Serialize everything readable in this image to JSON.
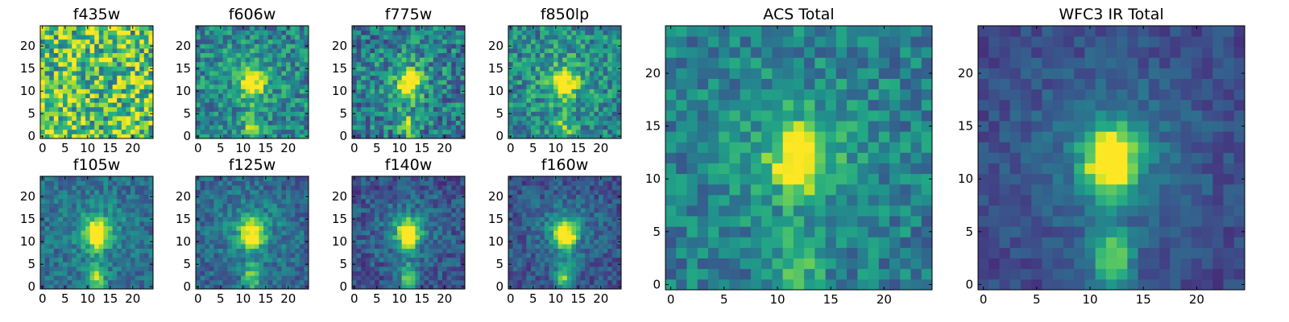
{
  "figure": {
    "description_type": "grid of heatmap image cutouts"
  },
  "chart_data": [
    {
      "type": "heatmap",
      "title": "f435w",
      "xlim": [
        -0.5,
        24.5
      ],
      "ylim": [
        -0.5,
        24.5
      ],
      "xticks": [
        "0",
        "5",
        "10",
        "15",
        "20"
      ],
      "yticks": [
        "0",
        "5",
        "10",
        "15",
        "20"
      ],
      "colormap": "viridis",
      "pattern": {
        "noise": 0.75,
        "background": 0.72,
        "source": 0.0,
        "tail": 0.0
      }
    },
    {
      "type": "heatmap",
      "title": "f606w",
      "xlim": [
        -0.5,
        24.5
      ],
      "ylim": [
        -0.5,
        24.5
      ],
      "xticks": [
        "0",
        "5",
        "10",
        "15",
        "20"
      ],
      "yticks": [
        "0",
        "5",
        "10",
        "15",
        "20"
      ],
      "colormap": "viridis",
      "pattern": {
        "noise": 0.45,
        "background": 0.45,
        "source": 0.55,
        "tail": 0.35
      }
    },
    {
      "type": "heatmap",
      "title": "f775w",
      "xlim": [
        -0.5,
        24.5
      ],
      "ylim": [
        -0.5,
        24.5
      ],
      "xticks": [
        "0",
        "5",
        "10",
        "15",
        "20"
      ],
      "yticks": [
        "0",
        "5",
        "10",
        "15",
        "20"
      ],
      "colormap": "viridis",
      "pattern": {
        "noise": 0.5,
        "background": 0.4,
        "source": 0.6,
        "tail": 0.35
      }
    },
    {
      "type": "heatmap",
      "title": "f850lp",
      "xlim": [
        -0.5,
        24.5
      ],
      "ylim": [
        -0.5,
        24.5
      ],
      "xticks": [
        "0",
        "5",
        "10",
        "15",
        "20"
      ],
      "yticks": [
        "0",
        "5",
        "10",
        "15",
        "20"
      ],
      "colormap": "viridis",
      "pattern": {
        "noise": 0.45,
        "background": 0.45,
        "source": 0.6,
        "tail": 0.3
      }
    },
    {
      "type": "heatmap",
      "title": "f105w",
      "xlim": [
        -0.5,
        24.5
      ],
      "ylim": [
        -0.5,
        24.5
      ],
      "xticks": [
        "0",
        "5",
        "10",
        "15",
        "20"
      ],
      "yticks": [
        "0",
        "5",
        "10",
        "15",
        "20"
      ],
      "colormap": "viridis",
      "pattern": {
        "noise": 0.3,
        "background": 0.35,
        "source": 0.7,
        "tail": 0.45
      }
    },
    {
      "type": "heatmap",
      "title": "f125w",
      "xlim": [
        -0.5,
        24.5
      ],
      "ylim": [
        -0.5,
        24.5
      ],
      "xticks": [
        "0",
        "5",
        "10",
        "15",
        "20"
      ],
      "yticks": [
        "0",
        "5",
        "10",
        "15",
        "20"
      ],
      "colormap": "viridis",
      "pattern": {
        "noise": 0.3,
        "background": 0.32,
        "source": 0.7,
        "tail": 0.45
      }
    },
    {
      "type": "heatmap",
      "title": "f140w",
      "xlim": [
        -0.5,
        24.5
      ],
      "ylim": [
        -0.5,
        24.5
      ],
      "xticks": [
        "0",
        "5",
        "10",
        "15",
        "20"
      ],
      "yticks": [
        "0",
        "5",
        "10",
        "15",
        "20"
      ],
      "colormap": "viridis",
      "pattern": {
        "noise": 0.3,
        "background": 0.25,
        "source": 0.75,
        "tail": 0.5
      }
    },
    {
      "type": "heatmap",
      "title": "f160w",
      "xlim": [
        -0.5,
        24.5
      ],
      "ylim": [
        -0.5,
        24.5
      ],
      "xticks": [
        "0",
        "5",
        "10",
        "15",
        "20"
      ],
      "yticks": [
        "0",
        "5",
        "10",
        "15",
        "20"
      ],
      "colormap": "viridis",
      "pattern": {
        "noise": 0.28,
        "background": 0.25,
        "source": 0.75,
        "tail": 0.5
      }
    },
    {
      "type": "heatmap",
      "title": "ACS Total",
      "xlim": [
        -0.5,
        24.5
      ],
      "ylim": [
        -0.5,
        24.5
      ],
      "xticks": [
        "0",
        "5",
        "10",
        "15",
        "20"
      ],
      "yticks": [
        "0",
        "5",
        "10",
        "15",
        "20"
      ],
      "colormap": "viridis",
      "pattern": {
        "noise": 0.35,
        "background": 0.42,
        "source": 0.6,
        "tail": 0.3
      }
    },
    {
      "type": "heatmap",
      "title": "WFC3 IR Total",
      "xlim": [
        -0.5,
        24.5
      ],
      "ylim": [
        -0.5,
        24.5
      ],
      "xticks": [
        "0",
        "5",
        "10",
        "15",
        "20"
      ],
      "yticks": [
        "0",
        "5",
        "10",
        "15",
        "20"
      ],
      "colormap": "viridis",
      "pattern": {
        "noise": 0.18,
        "background": 0.22,
        "source": 0.8,
        "tail": 0.55
      }
    }
  ]
}
